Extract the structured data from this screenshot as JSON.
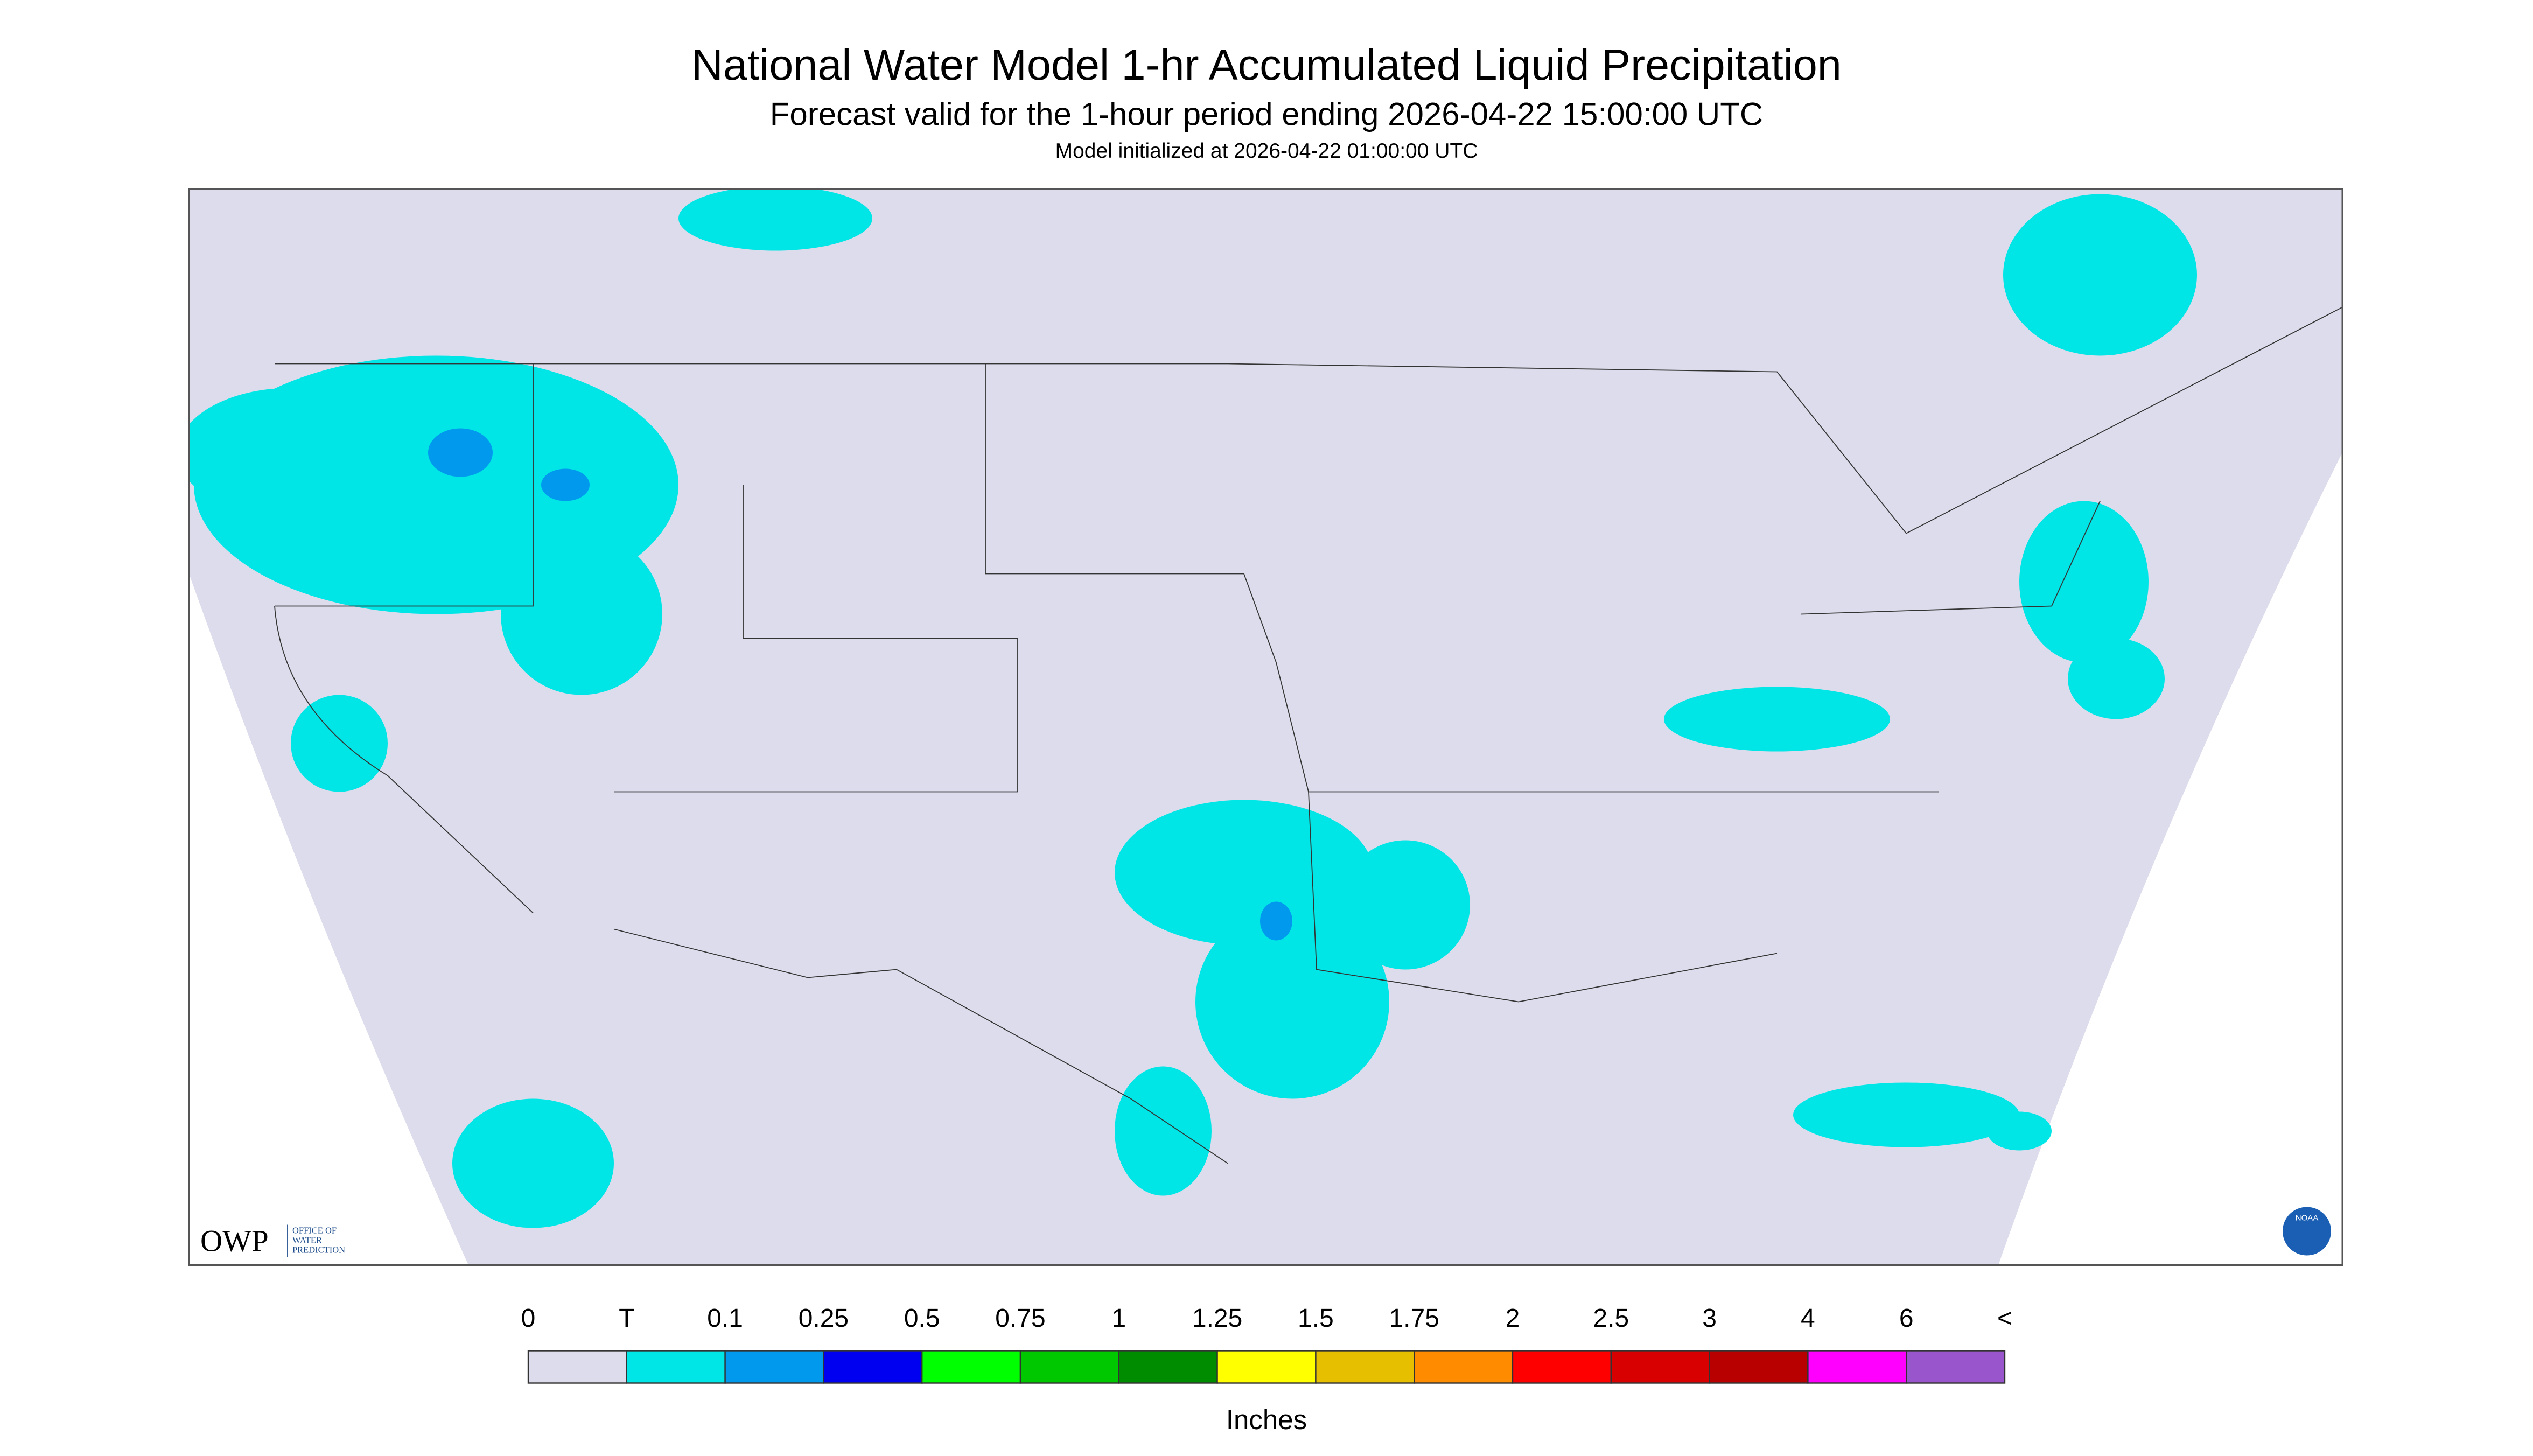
{
  "header": {
    "title": "National Water Model 1-hr Accumulated Liquid Precipitation",
    "subtitle": "Forecast valid for the 1-hour period ending 2026-04-22 15:00:00 UTC",
    "initialized": "Model initialized at 2026-04-22 01:00:00 UTC"
  },
  "legend": {
    "labels": [
      "0",
      "T",
      "0.1",
      "0.25",
      "0.5",
      "0.75",
      "1",
      "1.25",
      "1.5",
      "1.75",
      "2",
      "2.5",
      "3",
      "4",
      "6",
      "<"
    ],
    "colors": [
      "#dcdcec",
      "#00e6e6",
      "#0099ee",
      "#0000f0",
      "#00ff00",
      "#00c800",
      "#008c00",
      "#ffff00",
      "#e6c000",
      "#ff8c00",
      "#ff0000",
      "#d80000",
      "#b80000",
      "#ff00ff",
      "#9955cc"
    ],
    "unit": "Inches"
  },
  "logos": {
    "owp": "OWP",
    "owp_text": [
      "OFFICE OF",
      "WATER",
      "PREDICTION"
    ],
    "noaa": "NOAA"
  }
}
